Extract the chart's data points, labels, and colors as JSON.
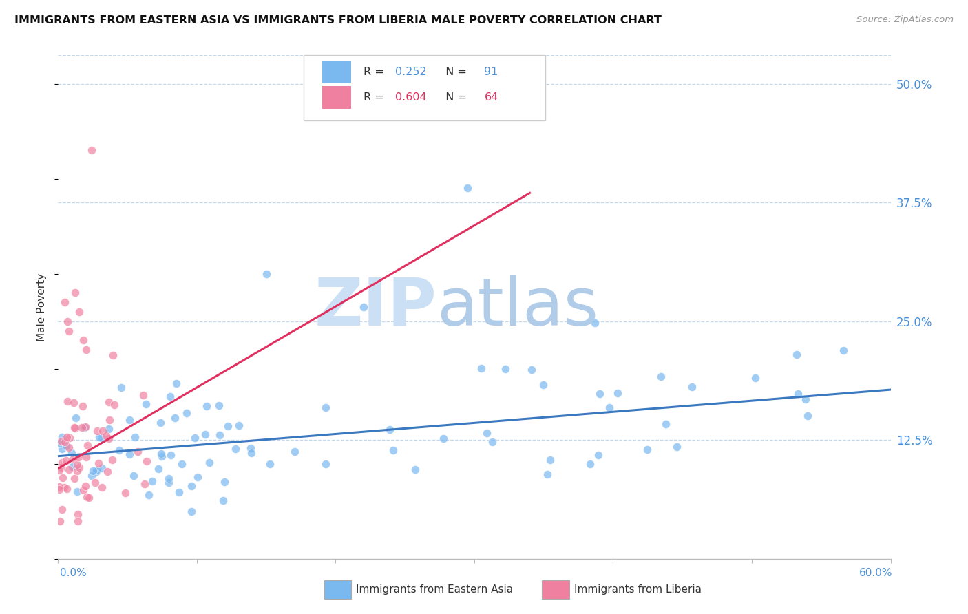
{
  "title": "IMMIGRANTS FROM EASTERN ASIA VS IMMIGRANTS FROM LIBERIA MALE POVERTY CORRELATION CHART",
  "source": "Source: ZipAtlas.com",
  "ylabel": "Male Poverty",
  "ytick_values": [
    0.125,
    0.25,
    0.375,
    0.5
  ],
  "xlim": [
    0.0,
    0.6
  ],
  "ylim": [
    0.0,
    0.53
  ],
  "color_blue": "#7ab8f0",
  "color_pink": "#f080a0",
  "color_blue_dark": "#3a78c0",
  "color_pink_dark": "#e03060",
  "watermark_zip_color": "#cce0f5",
  "watermark_atlas_color": "#b0cce8",
  "label_eastern_asia": "Immigrants from Eastern Asia",
  "label_liberia": "Immigrants from Liberia",
  "blue_trend_x0": 0.0,
  "blue_trend_x1": 0.6,
  "blue_trend_y0": 0.108,
  "blue_trend_y1": 0.178,
  "pink_trend_x0": 0.0,
  "pink_trend_x1": 0.34,
  "pink_trend_y0": 0.095,
  "pink_trend_y1": 0.385,
  "r_blue": "0.252",
  "n_blue": "91",
  "r_pink": "0.604",
  "n_pink": "64"
}
